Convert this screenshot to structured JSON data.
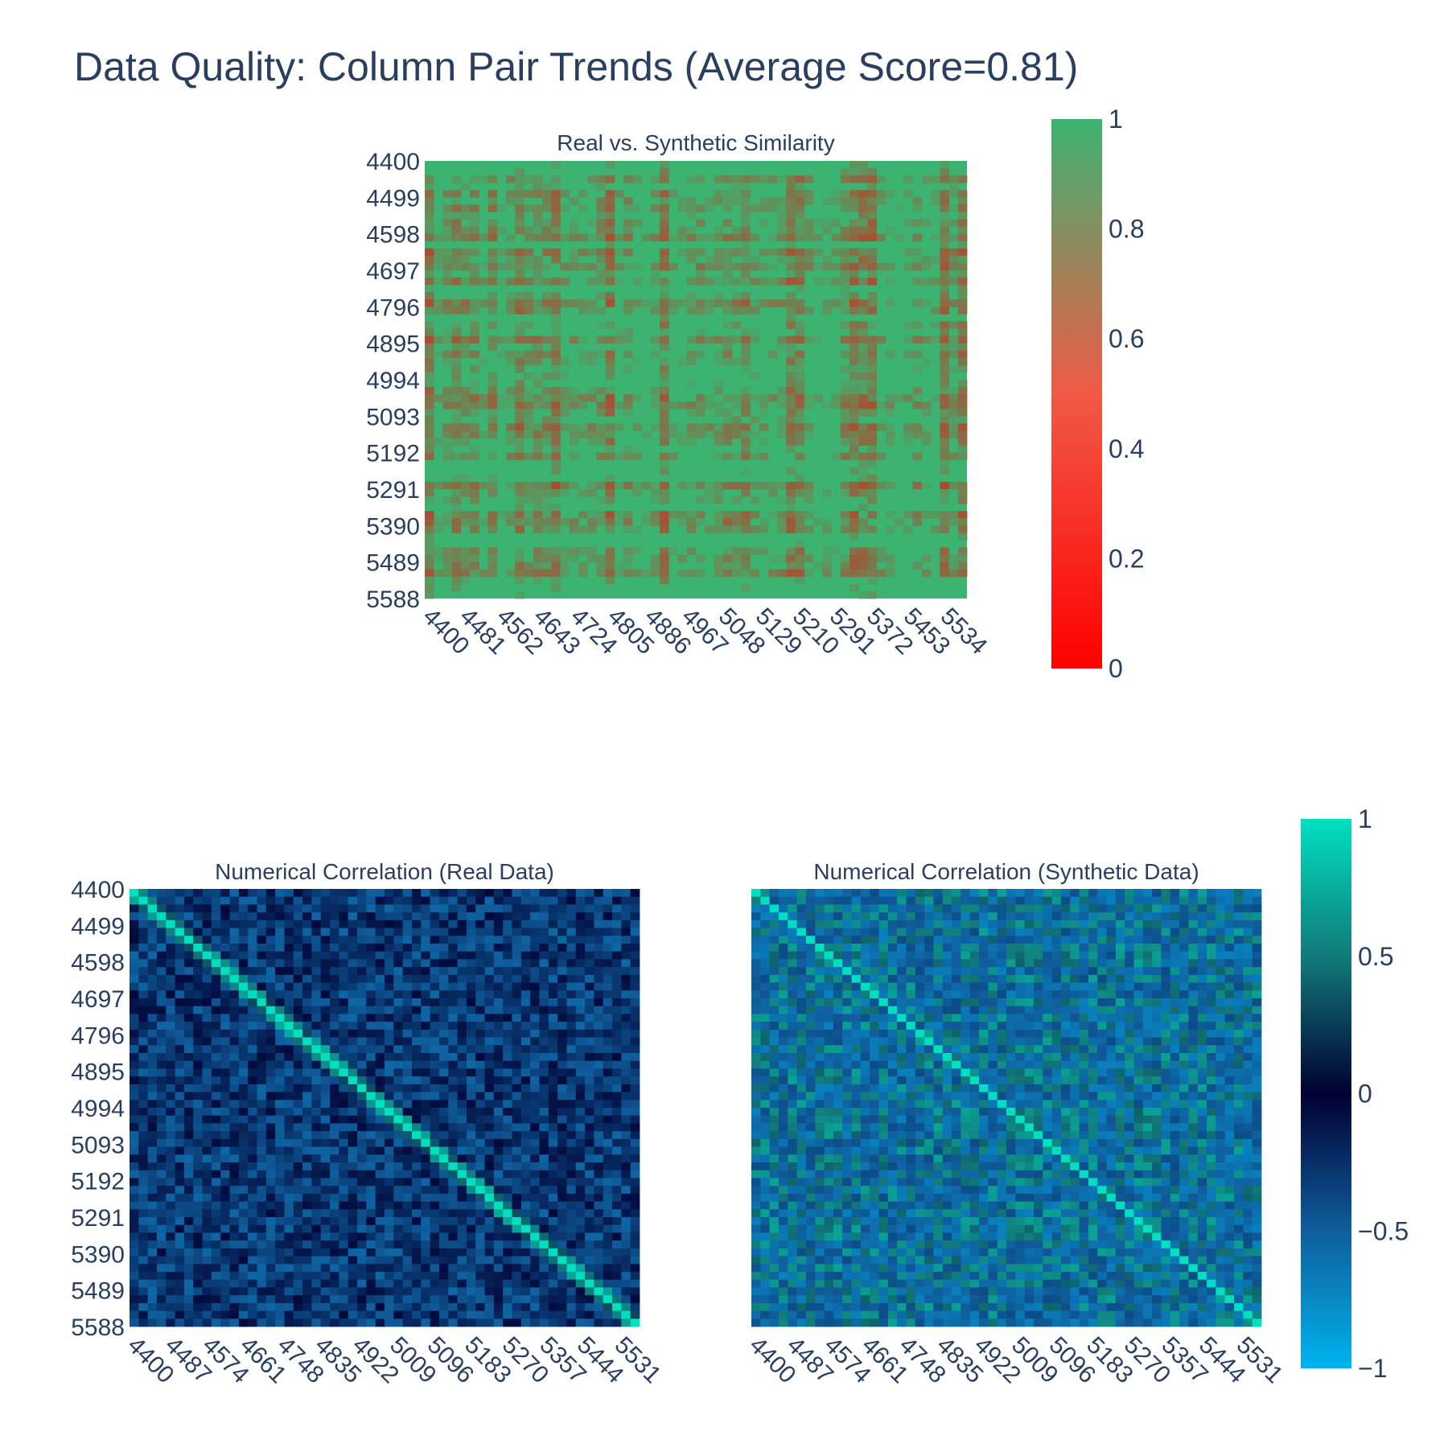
{
  "title": "Data Quality: Column Pair Trends (Average Score=0.81)",
  "chart_data": [
    {
      "type": "heatmap",
      "title": "Real vs. Synthetic Similarity",
      "y_ticks": [
        "4400",
        "4499",
        "4598",
        "4697",
        "4796",
        "4895",
        "4994",
        "5093",
        "5192",
        "5291",
        "5390",
        "5489",
        "5588"
      ],
      "x_ticks": [
        "4400",
        "4481",
        "4562",
        "4643",
        "4724",
        "4805",
        "4886",
        "4967",
        "5048",
        "5129",
        "5210",
        "5291",
        "5372",
        "5453",
        "5534"
      ],
      "value_range": [
        0,
        1
      ],
      "colorscale": [
        "#ff0000",
        "#3cb371"
      ],
      "colorbar_ticks": [
        "0",
        "0.2",
        "0.4",
        "0.6",
        "0.8",
        "1"
      ],
      "mean_value": 0.81
    },
    {
      "type": "heatmap",
      "title": "Numerical Correlation (Real Data)",
      "y_ticks": [
        "4400",
        "4499",
        "4598",
        "4697",
        "4796",
        "4895",
        "4994",
        "5093",
        "5192",
        "5291",
        "5390",
        "5489",
        "5588"
      ],
      "x_ticks": [
        "4400",
        "4487",
        "4574",
        "4661",
        "4748",
        "4835",
        "4922",
        "5009",
        "5096",
        "5183",
        "5270",
        "5357",
        "5444",
        "5531"
      ],
      "value_range": [
        -1,
        1
      ]
    },
    {
      "type": "heatmap",
      "title": "Numerical Correlation (Synthetic Data)",
      "x_ticks": [
        "4400",
        "4487",
        "4574",
        "4661",
        "4748",
        "4835",
        "4922",
        "5009",
        "5096",
        "5183",
        "5270",
        "5357",
        "5444",
        "5531"
      ],
      "value_range": [
        -1,
        1
      ],
      "colorscale": [
        "#00b4ee",
        "#0f5e9c",
        "#000032",
        "#117a7a",
        "#00e0c0"
      ],
      "colorbar_ticks": [
        "1",
        "0.5",
        "0",
        "−0.5",
        "−1"
      ]
    }
  ]
}
